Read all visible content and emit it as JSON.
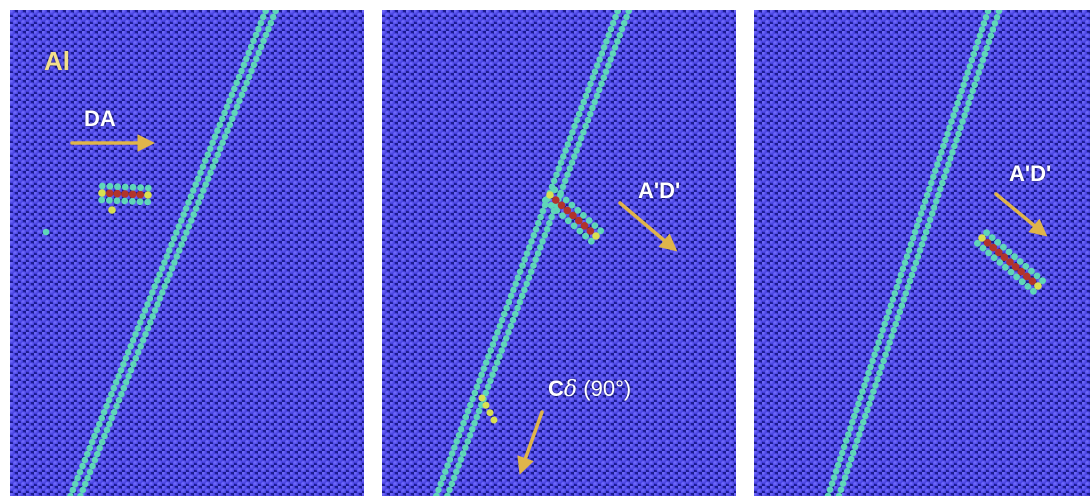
{
  "colors": {
    "background": "#ffffff",
    "matrix_atom": "#3a35d8",
    "matrix_atom_highlight": "#7670ff",
    "matrix_bg": "#1b1b8f",
    "boundary_atom": "#5fd6b8",
    "defect_core": "#b2342a",
    "defect_edge": "#d9e050",
    "arrow": "#e0b54a"
  },
  "panels": [
    {
      "material_label": "Al",
      "defect_label": "DA"
    },
    {
      "defect_label": "A'D'",
      "boundary_label_symbol": "C",
      "boundary_label_greek": "δ",
      "boundary_label_angle": "(90°)"
    },
    {
      "defect_label": "A'D'"
    }
  ]
}
